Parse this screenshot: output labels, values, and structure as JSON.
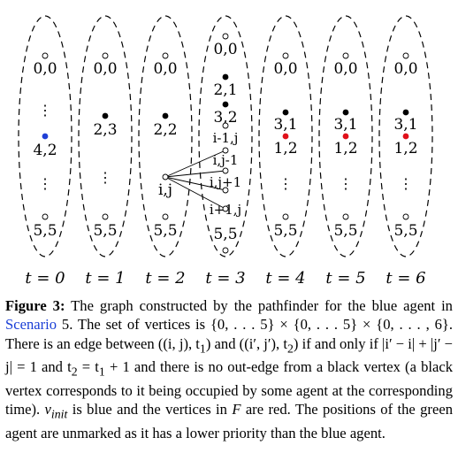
{
  "figure": {
    "time_labels": [
      "t = 0",
      "t = 1",
      "t = 2",
      "t = 3",
      "t = 4",
      "t = 5",
      "t = 6"
    ],
    "columns": [
      {
        "labels": [
          "0,0",
          "⋮",
          "4,2",
          "⋮",
          "5,5"
        ]
      },
      {
        "labels": [
          "0,0",
          "2,3",
          "⋮",
          "5,5"
        ]
      },
      {
        "labels": [
          "0,0",
          "2,2",
          "i,j",
          "5,5"
        ]
      },
      {
        "labels": [
          "0,0",
          "2,1",
          "3,2",
          "i-1,j",
          "i,j-1",
          "i,j+1",
          "i+1,j",
          "5,5"
        ]
      },
      {
        "labels": [
          "0,0",
          "3,1",
          "1,2",
          "⋮",
          "5,5"
        ]
      },
      {
        "labels": [
          "0,0",
          "3,1",
          "1,2",
          "⋮",
          "5,5"
        ]
      },
      {
        "labels": [
          "0,0",
          "3,1",
          "1,2",
          "⋮",
          "5,5"
        ]
      }
    ],
    "colors": {
      "blue": "#1f3fd6",
      "red": "#e0101a",
      "black": "#000000"
    }
  },
  "caption": {
    "label": "Figure 3:",
    "part1": " The graph constructed by the pathfinder for the blue agent in ",
    "link": "Scenario",
    "part2": " 5. The set of vertices is {0, . . . 5} × {0, . . . 5} × {0, . . . , 6}. There is an edge between ((i, j), t",
    "part3": ") and ((i′, j′), t",
    "part4": ") if and only if |i′ − i| + |j′ − j| = 1 and t",
    "part5": " = t",
    "part6": " + 1 and there is no out-edge from a black vertex (a black vertex corresponds to it being occupied by some agent at the corresponding time). ",
    "vinit": "v",
    "vinit_sub": "init",
    "part7": " is blue and the vertices in ",
    "F": "F",
    "part8": " are red. The positions of the green agent are unmarked as it has a lower priority than the blue agent.",
    "sub1": "1",
    "sub2": "2"
  }
}
